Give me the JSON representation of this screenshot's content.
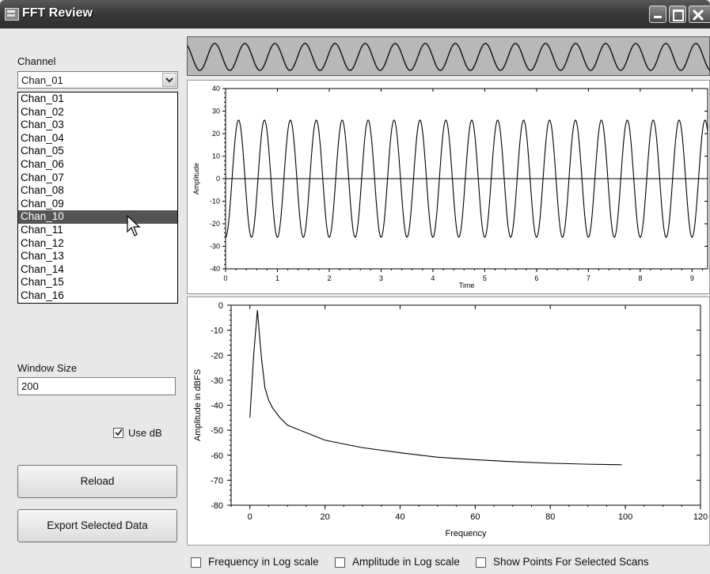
{
  "window": {
    "title": "FFT Review"
  },
  "channel": {
    "label": "Channel",
    "selected": "Chan_01",
    "options": [
      "Chan_01",
      "Chan_02",
      "Chan_03",
      "Chan_04",
      "Chan_05",
      "Chan_06",
      "Chan_07",
      "Chan_08",
      "Chan_09",
      "Chan_10",
      "Chan_11",
      "Chan_12",
      "Chan_13",
      "Chan_14",
      "Chan_15",
      "Chan_16"
    ],
    "highlighted": "Chan_10"
  },
  "window_size": {
    "label": "Window Size",
    "value": "200"
  },
  "use_db": {
    "label": "Use dB",
    "checked": true
  },
  "buttons": {
    "reload": "Reload",
    "export": "Export Selected Data"
  },
  "options": {
    "freq_log": {
      "label": "Frequency in Log scale",
      "checked": false
    },
    "amp_log": {
      "label": "Amplitude in Log scale",
      "checked": false
    },
    "show_points": {
      "label": "Show Points For Selected Scans",
      "checked": false
    }
  },
  "chart_data": [
    {
      "type": "line",
      "xlabel": "Time",
      "ylabel": "Amplitude",
      "xlim": [
        0,
        9.3
      ],
      "ylim": [
        -40,
        40
      ],
      "xticks": [
        0,
        1,
        2,
        3,
        4,
        5,
        6,
        7,
        8,
        9
      ],
      "yticks": [
        40,
        30,
        20,
        10,
        0,
        -10,
        -20,
        -30,
        -40
      ],
      "series": [
        {
          "amplitude": 26,
          "frequency_hz": 2,
          "x_start": 0,
          "x_end": 9.3
        }
      ],
      "zero_line": true
    },
    {
      "type": "line",
      "xlabel": "Frequency",
      "ylabel": "Amplitude in dBFS",
      "xlim": [
        -5,
        120
      ],
      "ylim": [
        -80,
        0
      ],
      "xticks": [
        0,
        20,
        40,
        60,
        80,
        100,
        120
      ],
      "yticks": [
        0,
        -10,
        -20,
        -30,
        -40,
        -50,
        -60,
        -70,
        -80
      ],
      "series": [
        {
          "x": [
            0,
            1,
            2,
            3,
            4,
            5,
            6,
            8,
            10,
            15,
            20,
            30,
            40,
            50,
            60,
            70,
            80,
            90,
            99
          ],
          "y": [
            -45,
            -20,
            -2,
            -20,
            -33,
            -38,
            -41,
            -45,
            -48,
            -51,
            -54,
            -57,
            -59,
            -60.8,
            -61.8,
            -62.6,
            -63.2,
            -63.6,
            -63.8
          ]
        }
      ]
    }
  ]
}
